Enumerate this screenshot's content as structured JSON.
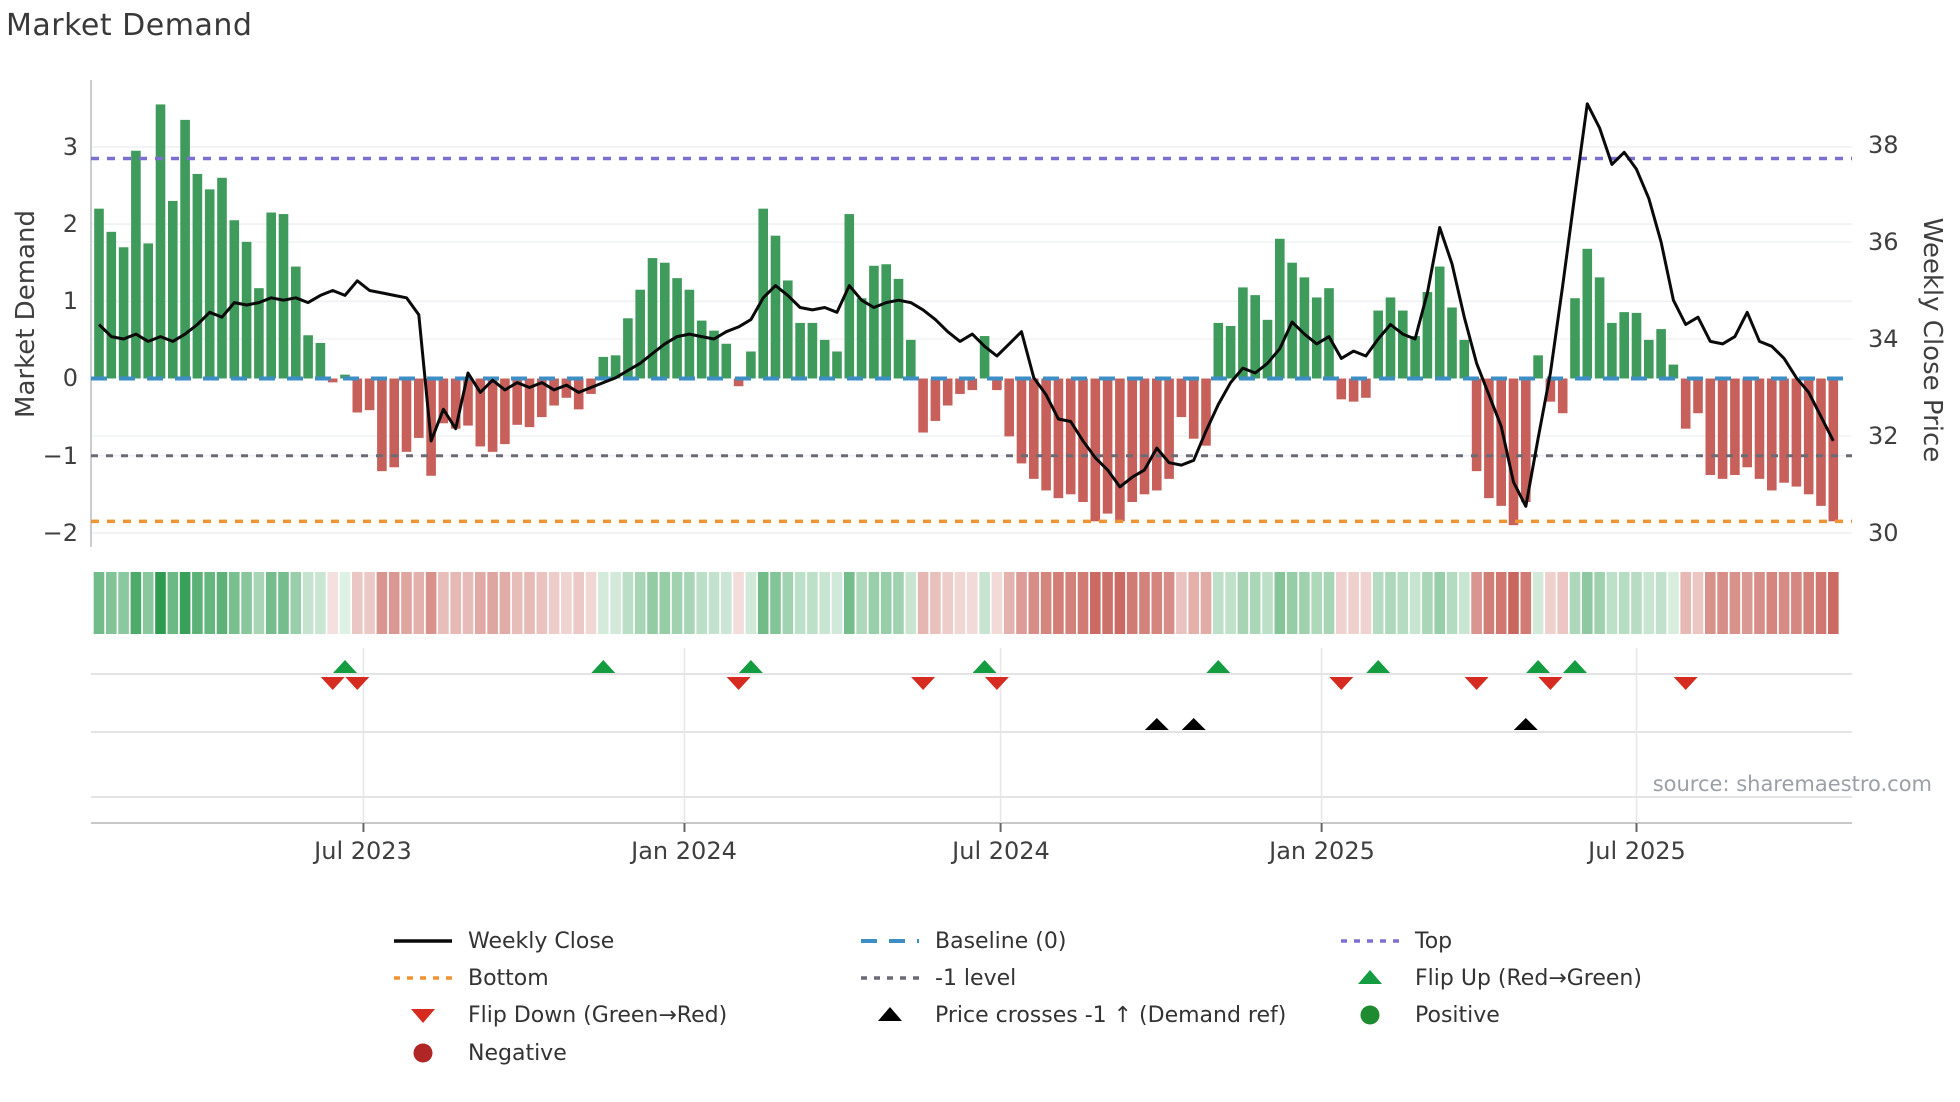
{
  "title": "Market Demand",
  "source": "source: sharemaestro.com",
  "y_axis": {
    "label": "Market Demand",
    "ticks": [
      "3",
      "2",
      "1",
      "0",
      "−1",
      "−2"
    ],
    "tick_values": [
      3,
      2,
      1,
      0,
      -1,
      -2
    ]
  },
  "y2_axis": {
    "label": "Weekly Close Price",
    "ticks": [
      "38",
      "36",
      "34",
      "32",
      "30"
    ],
    "tick_values": [
      38,
      36,
      34,
      32,
      30
    ]
  },
  "x_axis": {
    "ticks": [
      "Jul 2023",
      "Jan 2024",
      "Jul 2024",
      "Jan 2025",
      "Jul 2025"
    ],
    "tick_week_index": [
      21.5,
      47.6,
      73.3,
      99.4,
      125.0
    ]
  },
  "colors": {
    "bar_positive": "#3f9b5b",
    "bar_negative": "#c7605a",
    "price_line": "#0a0a0a",
    "baseline": "#3d8ec4",
    "top_line": "#7b70d2",
    "bottom_line": "#ef9433",
    "minus_one_line": "#6b6b76",
    "flip_up": "#149c40",
    "flip_down": "#d62b21",
    "price_cross": "#000000",
    "positive_dot": "#1f8b30",
    "negative_dot": "#b02525",
    "grid": "#eef0f3",
    "heat_green": "#2e9b51",
    "heat_red": "#c9675f"
  },
  "legend": {
    "items": [
      {
        "label": "Weekly Close",
        "swatch": "solid-line",
        "color": "#0a0a0a"
      },
      {
        "label": "Baseline (0)",
        "swatch": "dash-line",
        "color": "#3d8ec4"
      },
      {
        "label": "Top",
        "swatch": "dot-line",
        "color": "#7b70d2"
      },
      {
        "label": "Bottom",
        "swatch": "dot-line",
        "color": "#ef9433"
      },
      {
        "label": "-1 level",
        "swatch": "dot-line",
        "color": "#6b6b76"
      },
      {
        "label": "Flip Up (Red→Green)",
        "swatch": "tri-up",
        "color": "#149c40"
      },
      {
        "label": "Flip Down (Green→Red)",
        "swatch": "tri-down",
        "color": "#d62b21"
      },
      {
        "label": "Price crosses -1 ↑ (Demand ref)",
        "swatch": "tri-up",
        "color": "#000000"
      },
      {
        "label": "Positive",
        "swatch": "circle",
        "color": "#1f8b30"
      },
      {
        "label": "Negative",
        "swatch": "circle",
        "color": "#b02525"
      }
    ]
  },
  "chart_data": {
    "type": "bar+line",
    "description": "Weekly market-demand oscillator bars (left axis) with weekly close price line (right axis), heat strip and flip/cross event markers",
    "start_week": "2023-02-06",
    "frequency": "weekly",
    "ylim_demand": [
      -2.18,
      3.87
    ],
    "ylim_price": [
      29.7,
      39.34
    ],
    "reference_levels": {
      "baseline": 0,
      "top": 2.85,
      "bottom": -1.85,
      "minus_one": -1
    },
    "demand": [
      2.2,
      1.9,
      1.7,
      2.95,
      1.75,
      3.55,
      2.3,
      3.35,
      2.65,
      2.45,
      2.6,
      2.05,
      1.77,
      1.17,
      2.15,
      2.13,
      1.45,
      0.56,
      0.46,
      -0.05,
      0.05,
      -0.44,
      -0.41,
      -1.2,
      -1.15,
      -0.95,
      -0.77,
      -1.26,
      -0.58,
      -0.65,
      -0.61,
      -0.88,
      -0.95,
      -0.85,
      -0.6,
      -0.63,
      -0.5,
      -0.35,
      -0.25,
      -0.4,
      -0.2,
      0.28,
      0.3,
      0.78,
      1.15,
      1.56,
      1.5,
      1.3,
      1.15,
      0.75,
      0.62,
      0.45,
      -0.1,
      0.35,
      2.2,
      1.85,
      1.27,
      0.72,
      0.72,
      0.5,
      0.35,
      2.13,
      1.04,
      1.46,
      1.48,
      1.29,
      0.5,
      -0.7,
      -0.55,
      -0.35,
      -0.2,
      -0.15,
      0.55,
      -0.15,
      -0.75,
      -1.1,
      -1.3,
      -1.45,
      -1.55,
      -1.5,
      -1.6,
      -1.85,
      -1.75,
      -1.85,
      -1.6,
      -1.5,
      -1.45,
      -1.3,
      -0.5,
      -0.78,
      -0.87,
      0.72,
      0.68,
      1.18,
      1.08,
      0.76,
      1.81,
      1.5,
      1.31,
      1.05,
      1.17,
      -0.27,
      -0.3,
      -0.25,
      0.88,
      1.05,
      0.88,
      0.55,
      1.12,
      1.45,
      0.92,
      0.5,
      -1.2,
      -1.55,
      -1.65,
      -1.9,
      -1.6,
      0.3,
      -0.3,
      -0.45,
      1.04,
      1.68,
      1.31,
      0.72,
      0.86,
      0.85,
      0.5,
      0.64,
      0.18,
      -0.65,
      -0.45,
      -1.25,
      -1.3,
      -1.25,
      -1.15,
      -1.3,
      -1.45,
      -1.35,
      -1.4,
      -1.5,
      -1.65,
      -1.85
    ],
    "price": [
      34.3,
      34.05,
      34.0,
      34.1,
      33.95,
      34.05,
      33.95,
      34.1,
      34.3,
      34.55,
      34.45,
      34.75,
      34.7,
      34.75,
      34.85,
      34.8,
      34.85,
      34.75,
      34.9,
      35.0,
      34.9,
      35.2,
      35.0,
      34.95,
      34.9,
      34.85,
      34.5,
      31.9,
      32.55,
      32.15,
      33.3,
      32.9,
      33.15,
      32.95,
      33.1,
      33.0,
      33.1,
      32.95,
      33.05,
      32.9,
      33.0,
      33.1,
      33.2,
      33.35,
      33.5,
      33.7,
      33.9,
      34.05,
      34.1,
      34.05,
      34.0,
      34.15,
      34.25,
      34.4,
      34.85,
      35.1,
      34.9,
      34.65,
      34.6,
      34.65,
      34.55,
      35.1,
      34.8,
      34.65,
      34.75,
      34.8,
      34.75,
      34.6,
      34.4,
      34.15,
      33.95,
      34.1,
      33.85,
      33.65,
      33.9,
      34.15,
      33.2,
      32.85,
      32.35,
      32.3,
      31.9,
      31.55,
      31.3,
      30.95,
      31.15,
      31.3,
      31.75,
      31.45,
      31.4,
      31.5,
      32.1,
      32.65,
      33.1,
      33.4,
      33.3,
      33.5,
      33.8,
      34.35,
      34.1,
      33.9,
      34.05,
      33.6,
      33.75,
      33.65,
      34.0,
      34.3,
      34.1,
      34.0,
      34.95,
      36.3,
      35.55,
      34.45,
      33.5,
      32.85,
      32.2,
      31.05,
      30.55,
      31.95,
      33.3,
      35.1,
      37.0,
      38.85,
      38.35,
      37.6,
      37.85,
      37.5,
      36.9,
      36.0,
      34.8,
      34.3,
      34.45,
      33.95,
      33.9,
      34.05,
      34.55,
      33.95,
      33.85,
      33.6,
      33.2,
      32.9,
      32.4,
      31.9
    ],
    "markers": {
      "flip_up_week_index": [
        20,
        41,
        53,
        72,
        91,
        104,
        117,
        120
      ],
      "flip_down_week_index": [
        19,
        21,
        52,
        67,
        73,
        101,
        112,
        118,
        129
      ],
      "price_cross_week_index": [
        86,
        89,
        116
      ]
    },
    "legend_position": "bottom",
    "grid": true
  }
}
